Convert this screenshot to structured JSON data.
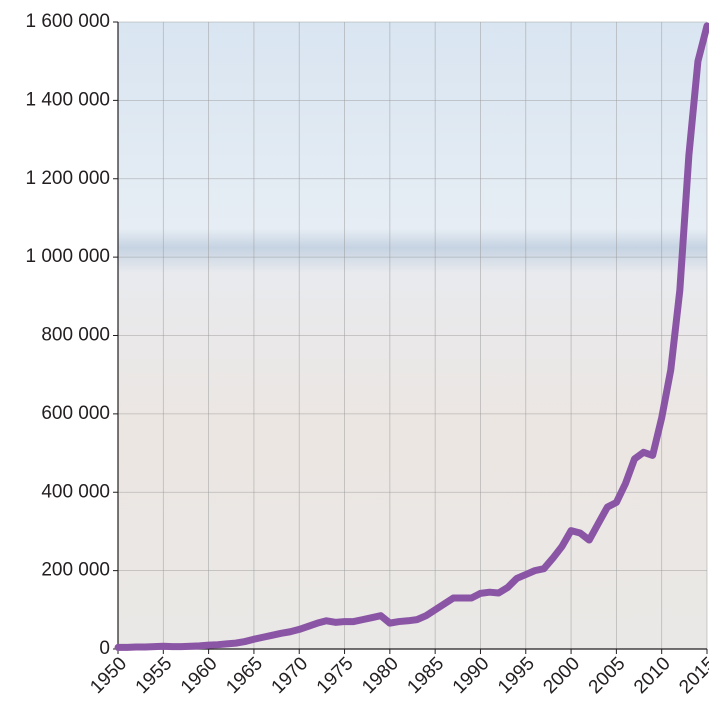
{
  "chart_data": {
    "type": "line",
    "x": [
      1950,
      1951,
      1952,
      1953,
      1954,
      1955,
      1956,
      1957,
      1958,
      1959,
      1960,
      1961,
      1962,
      1963,
      1964,
      1965,
      1966,
      1967,
      1968,
      1969,
      1970,
      1971,
      1972,
      1973,
      1974,
      1975,
      1976,
      1977,
      1978,
      1979,
      1980,
      1981,
      1982,
      1983,
      1984,
      1985,
      1986,
      1987,
      1988,
      1989,
      1990,
      1991,
      1992,
      1993,
      1994,
      1995,
      1996,
      1997,
      1998,
      1999,
      2000,
      2001,
      2002,
      2003,
      2004,
      2005,
      2006,
      2007,
      2008,
      2009,
      2010,
      2011,
      2012,
      2013,
      2014,
      2015
    ],
    "series": [
      {
        "color": "#8b55a6",
        "values": [
          4000,
          4000,
          5000,
          5000,
          6000,
          7000,
          6000,
          6000,
          7000,
          8000,
          10000,
          11000,
          13000,
          15000,
          19000,
          25000,
          30000,
          35000,
          40000,
          44000,
          50000,
          58000,
          66000,
          72000,
          68000,
          70000,
          70000,
          75000,
          80000,
          85000,
          66000,
          70000,
          72000,
          75000,
          85000,
          100000,
          115000,
          130000,
          130000,
          130000,
          142000,
          145000,
          143000,
          157000,
          180000,
          190000,
          200000,
          205000,
          232000,
          262000,
          302000,
          296000,
          278000,
          320000,
          362000,
          374000,
          422000,
          485000,
          502000,
          494000,
          590000,
          712000,
          915000,
          1260000,
          1500000,
          1590000
        ]
      }
    ],
    "xlim": [
      1950,
      2015
    ],
    "xticks": [
      1950,
      1955,
      1960,
      1965,
      1970,
      1975,
      1980,
      1985,
      1990,
      1995,
      2000,
      2005,
      2010,
      2015
    ],
    "ylim": [
      0,
      1600000
    ],
    "yticks": [
      0,
      {
        "value": 200000,
        "label": "200 000"
      },
      {
        "value": 400000,
        "label": "400 000"
      },
      {
        "value": 600000,
        "label": "600 000"
      },
      {
        "value": 800000,
        "label": "800 000"
      },
      {
        "value": 1000000,
        "label": "1 000 000"
      },
      {
        "value": 1200000,
        "label": "1 200 000"
      },
      {
        "value": 1400000,
        "label": "1 400 000"
      },
      {
        "value": 1600000,
        "label": "1 600 000"
      }
    ],
    "grid": true
  }
}
